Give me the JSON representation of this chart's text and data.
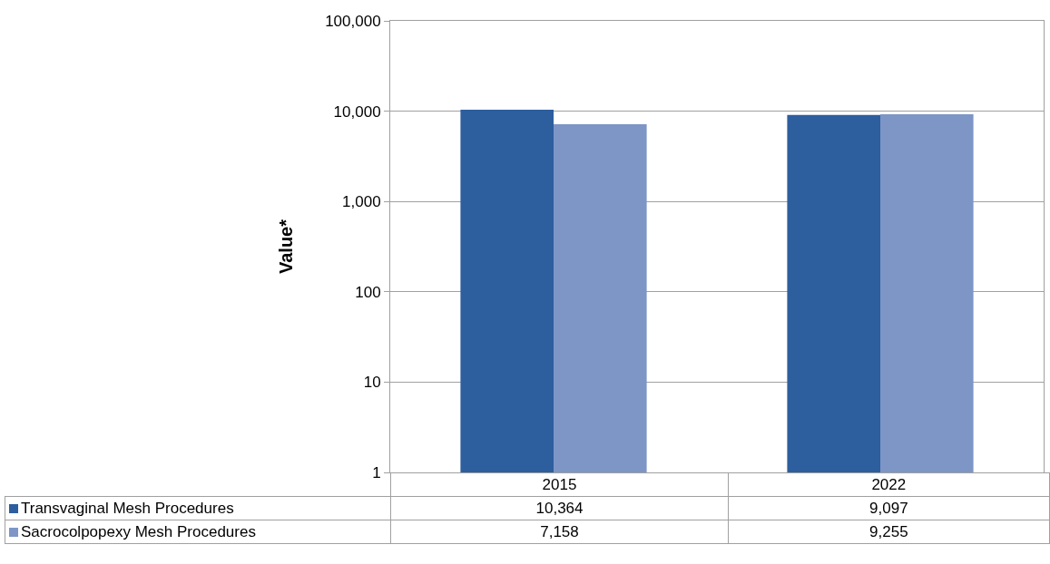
{
  "chart_data": {
    "type": "bar",
    "ylabel": "Value*",
    "categories": [
      "2015",
      "2022"
    ],
    "series": [
      {
        "name": "Transvaginal Mesh Procedures",
        "color": "#2d5e9e",
        "values": [
          10364,
          9097
        ],
        "value_labels": [
          "10,364",
          "9,097"
        ]
      },
      {
        "name": "Sacrocolpopexy Mesh Procedures",
        "color": "#7d96c6",
        "values": [
          7158,
          9255
        ],
        "value_labels": [
          "7,158",
          "9,255"
        ]
      }
    ],
    "log": "y",
    "ylim": [
      1,
      100000
    ],
    "yticks": [
      1,
      10,
      100,
      {
        "value": 1000,
        "label": "1,000"
      },
      {
        "value": 10000,
        "label": "10,000"
      },
      {
        "value": 100000,
        "label": "100,000"
      }
    ],
    "grid": "y",
    "legend": "bottom"
  }
}
